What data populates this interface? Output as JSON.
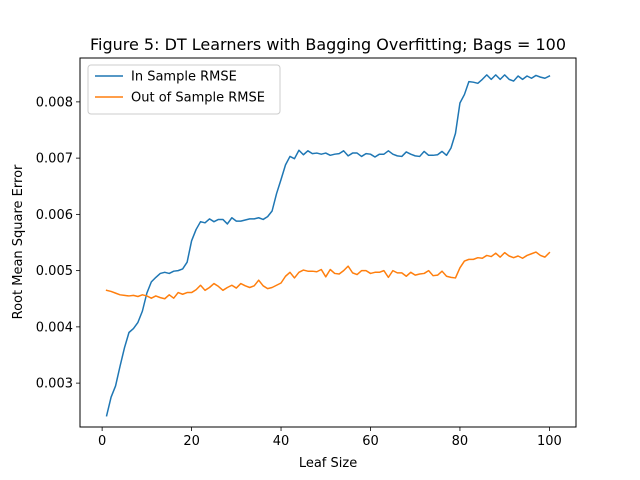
{
  "chart_data": {
    "type": "line",
    "title": "Figure 5: DT Learners with Bagging Overfitting; Bags = 100",
    "xlabel": "Leaf Size",
    "ylabel": "Root Mean Square Error",
    "xlim": [
      -4.95,
      105.95
    ],
    "ylim": [
      0.00222,
      0.00878
    ],
    "xticks": [
      0,
      20,
      40,
      60,
      80,
      100
    ],
    "xtick_labels": [
      "0",
      "20",
      "40",
      "60",
      "80",
      "100"
    ],
    "yticks": [
      0.003,
      0.004,
      0.005,
      0.006,
      0.007,
      0.008
    ],
    "ytick_labels": [
      "0.003",
      "0.004",
      "0.005",
      "0.006",
      "0.007",
      "0.008"
    ],
    "grid": false,
    "legend": "upper-left",
    "x": [
      1,
      2,
      3,
      4,
      5,
      6,
      7,
      8,
      9,
      10,
      11,
      12,
      13,
      14,
      15,
      16,
      17,
      18,
      19,
      20,
      21,
      22,
      23,
      24,
      25,
      26,
      27,
      28,
      29,
      30,
      31,
      32,
      33,
      34,
      35,
      36,
      37,
      38,
      39,
      40,
      41,
      42,
      43,
      44,
      45,
      46,
      47,
      48,
      49,
      50,
      51,
      52,
      53,
      54,
      55,
      56,
      57,
      58,
      59,
      60,
      61,
      62,
      63,
      64,
      65,
      66,
      67,
      68,
      69,
      70,
      71,
      72,
      73,
      74,
      75,
      76,
      77,
      78,
      79,
      80,
      81,
      82,
      83,
      84,
      85,
      86,
      87,
      88,
      89,
      90,
      91,
      92,
      93,
      94,
      95,
      96,
      97,
      98,
      99,
      100
    ],
    "series": [
      {
        "name": "In Sample RMSE",
        "color": "#1f77b4",
        "values": [
          0.00242,
          0.00275,
          0.00295,
          0.0033,
          0.00363,
          0.0039,
          0.00397,
          0.00408,
          0.00428,
          0.0046,
          0.0048,
          0.00488,
          0.00495,
          0.00497,
          0.00495,
          0.00499,
          0.005,
          0.00503,
          0.00515,
          0.00553,
          0.00573,
          0.00587,
          0.00585,
          0.00592,
          0.00587,
          0.00591,
          0.00591,
          0.00583,
          0.00594,
          0.00588,
          0.00588,
          0.0059,
          0.00592,
          0.00592,
          0.00594,
          0.00591,
          0.00596,
          0.00606,
          0.00637,
          0.00662,
          0.00688,
          0.00703,
          0.00699,
          0.00714,
          0.00706,
          0.00713,
          0.00708,
          0.00709,
          0.00707,
          0.00709,
          0.00705,
          0.00707,
          0.00708,
          0.00713,
          0.00704,
          0.00709,
          0.00709,
          0.00703,
          0.00708,
          0.00707,
          0.00702,
          0.00707,
          0.00707,
          0.00713,
          0.00707,
          0.00704,
          0.00703,
          0.00711,
          0.00707,
          0.00704,
          0.00703,
          0.00712,
          0.00705,
          0.00705,
          0.00706,
          0.00712,
          0.00705,
          0.00718,
          0.00744,
          0.00798,
          0.00813,
          0.00836,
          0.00835,
          0.00833,
          0.0084,
          0.00848,
          0.0084,
          0.00848,
          0.0084,
          0.00848,
          0.0084,
          0.00837,
          0.00846,
          0.0084,
          0.00846,
          0.00842,
          0.00847,
          0.00844,
          0.00842,
          0.00846
        ]
      },
      {
        "name": "Out of Sample RMSE",
        "color": "#ff7f0e",
        "values": [
          0.00465,
          0.00463,
          0.0046,
          0.00457,
          0.00456,
          0.00455,
          0.00456,
          0.00454,
          0.00457,
          0.00455,
          0.00451,
          0.00455,
          0.00452,
          0.0045,
          0.00457,
          0.00451,
          0.00461,
          0.00458,
          0.00461,
          0.00461,
          0.00466,
          0.00474,
          0.00465,
          0.0047,
          0.00477,
          0.00472,
          0.00465,
          0.0047,
          0.00474,
          0.00469,
          0.00477,
          0.00473,
          0.0047,
          0.00473,
          0.00483,
          0.00473,
          0.00468,
          0.0047,
          0.00474,
          0.00478,
          0.0049,
          0.00497,
          0.00487,
          0.00497,
          0.00501,
          0.00499,
          0.00499,
          0.00498,
          0.00502,
          0.00489,
          0.00502,
          0.00495,
          0.00494,
          0.005,
          0.00508,
          0.00496,
          0.00493,
          0.005,
          0.005,
          0.00495,
          0.00497,
          0.00497,
          0.005,
          0.00488,
          0.005,
          0.00496,
          0.00496,
          0.0049,
          0.00497,
          0.00492,
          0.00494,
          0.00495,
          0.005,
          0.00491,
          0.00492,
          0.00499,
          0.0049,
          0.00488,
          0.00487,
          0.00505,
          0.00517,
          0.0052,
          0.0052,
          0.00523,
          0.00522,
          0.00527,
          0.00525,
          0.00531,
          0.00524,
          0.00532,
          0.00526,
          0.00523,
          0.00526,
          0.00522,
          0.00527,
          0.0053,
          0.00533,
          0.00527,
          0.00524,
          0.00532
        ]
      }
    ]
  }
}
